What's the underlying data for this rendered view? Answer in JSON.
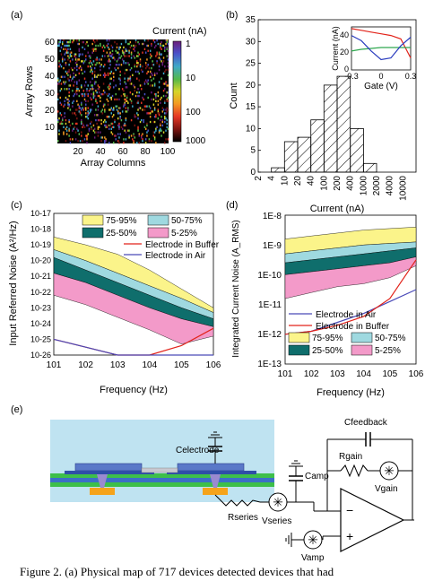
{
  "panel_a": {
    "label": "(a)",
    "xlabel": "Array Columns",
    "ylabel": "Array Rows",
    "x_ticks": [
      "20",
      "40",
      "60",
      "80",
      "100"
    ],
    "y_ticks": [
      "10",
      "20",
      "30",
      "40",
      "50",
      "60"
    ],
    "colorbar_title": "Current (nA)",
    "colorbar_ticks": [
      "1",
      "10",
      "100",
      "1000"
    ],
    "colorbar_colors": [
      "#6b1d7a",
      "#4a50c8",
      "#3fa8c8",
      "#56b849",
      "#d6d52a",
      "#f39b23",
      "#e53624",
      "#7a1410",
      "#000000"
    ]
  },
  "panel_b": {
    "label": "(b)",
    "ylabel": "Count",
    "xlabel": "Current (nA)",
    "inset_ylabel": "Current (nA)",
    "inset_xlabel": "Gate (V)",
    "inset_x_ticks": [
      "-0.3",
      "0",
      "0.3"
    ],
    "inset_y_ticks": [
      "0",
      "20",
      "40"
    ],
    "inset_series_colors": [
      "#e2231a",
      "#2fa84f",
      "#2b3dbf"
    ]
  },
  "panel_c": {
    "label": "(c)",
    "ylabel": "Input Referred Noise (A²/Hz)",
    "xlabel": "Frequency (Hz)",
    "legend": [
      "75-95%",
      "50-75%",
      "25-50%",
      "5-25%",
      "Electrode in Buffer",
      "Electrode in Air"
    ],
    "colors": {
      "p75_95": "#fbf48a",
      "p50_75": "#9fd9e0",
      "p25_50": "#0f6e6c",
      "p5_25": "#f39ac9",
      "buffer": "#e2231a",
      "air": "#4a4ab8"
    }
  },
  "panel_d": {
    "label": "(d)",
    "ylabel": "Integrated Current Noise (A_RMS)",
    "xlabel": "Frequency (Hz)",
    "y_ticks": [
      "1E-8",
      "1E-9",
      "1E-10",
      "1E-11",
      "1E-12",
      "1E-13"
    ],
    "legend": [
      "Electrode in Air",
      "Electrode in Buffer",
      "75-95%",
      "50-75%",
      "25-50%",
      "5-25%"
    ]
  },
  "panel_e": {
    "label": "(e)",
    "labels": [
      "Celectrode",
      "Camp",
      "Cfeedback",
      "Rgain",
      "Vgain",
      "Rseries",
      "Vseries",
      "Vamp"
    ],
    "op_minus": "−",
    "op_plus": "+"
  },
  "chart_data": [
    {
      "type": "heatmap",
      "xlabel": "Array Columns",
      "ylabel": "Array Rows",
      "xlim": [
        1,
        100
      ],
      "ylim": [
        1,
        60
      ],
      "colorbar": {
        "title": "Current (nA)",
        "ticks": [
          1,
          10,
          100,
          1000
        ],
        "scale": "log"
      }
    },
    {
      "type": "bar",
      "xlabel": "Current (nA)",
      "ylabel": "Count",
      "categories": [
        "2",
        "4",
        "10",
        "20",
        "40",
        "100",
        "200",
        "400",
        "1000",
        "2000",
        "4000",
        "10000"
      ],
      "values": [
        0,
        1,
        7,
        8,
        12,
        20,
        22,
        10,
        2,
        0,
        0,
        0
      ],
      "ylim": [
        0,
        35
      ],
      "y_ticks": [
        0,
        5,
        10,
        15,
        20,
        25,
        30,
        35
      ],
      "x_scale": "log"
    },
    {
      "type": "line",
      "title": "",
      "xlabel": "Gate (V)",
      "ylabel": "Current (nA)",
      "xlim": [
        -0.3,
        0.3
      ],
      "ylim": [
        0,
        50
      ],
      "x": [
        -0.3,
        -0.2,
        -0.1,
        0,
        0.1,
        0.2,
        0.3
      ],
      "series": [
        {
          "values": [
            48,
            46,
            44,
            42,
            40,
            36,
            14
          ]
        },
        {
          "values": [
            22,
            24,
            25,
            26,
            26,
            26,
            26
          ]
        },
        {
          "values": [
            40,
            34,
            22,
            12,
            14,
            28,
            38
          ]
        }
      ]
    },
    {
      "type": "area",
      "xlabel": "Frequency (Hz)",
      "ylabel": "Input Referred Noise (A²/Hz)",
      "x_scale": "log",
      "y_scale": "log",
      "xlim": [
        10,
        1000000
      ],
      "ylim": [
        1e-26,
        1e-17
      ],
      "x_ticks": [
        10,
        100,
        1000,
        10000,
        100000,
        1000000
      ],
      "y_ticks": [
        1e-26,
        1e-25,
        1e-24,
        1e-23,
        1e-22,
        1e-21,
        1e-20,
        1e-19,
        1e-18,
        1e-17
      ],
      "x": [
        10,
        100,
        1000,
        10000,
        100000,
        1000000
      ],
      "bands": [
        {
          "name": "75-95%",
          "lower_exp": [
            -19.3,
            -20.0,
            -20.8,
            -21.6,
            -22.4,
            -23.3
          ],
          "upper_exp": [
            -18.5,
            -19.0,
            -19.6,
            -20.6,
            -21.8,
            -23.0
          ]
        },
        {
          "name": "50-75%",
          "lower_exp": [
            -19.8,
            -20.6,
            -21.4,
            -22.2,
            -23.0,
            -23.7
          ],
          "upper_exp": [
            -19.3,
            -20.0,
            -20.8,
            -21.6,
            -22.4,
            -23.3
          ]
        },
        {
          "name": "25-50%",
          "lower_exp": [
            -20.8,
            -21.4,
            -22.2,
            -23.0,
            -23.7,
            -24.2
          ],
          "upper_exp": [
            -19.8,
            -20.6,
            -21.4,
            -22.2,
            -23.0,
            -23.7
          ]
        },
        {
          "name": "5-25%",
          "lower_exp": [
            -22.2,
            -22.8,
            -23.6,
            -24.4,
            -25.3,
            -24.8
          ],
          "upper_exp": [
            -20.8,
            -21.4,
            -22.2,
            -23.0,
            -23.7,
            -24.2
          ]
        }
      ],
      "series": [
        {
          "name": "Electrode in Buffer",
          "y_exp": [
            -25.0,
            -25.5,
            -26.0,
            -26.0,
            -25.4,
            -24.3
          ]
        },
        {
          "name": "Electrode in Air",
          "y_exp": [
            -25.0,
            -25.5,
            -26.0,
            -26.0,
            -26.0,
            -26.0
          ]
        }
      ]
    },
    {
      "type": "area",
      "xlabel": "Frequency (Hz)",
      "ylabel": "Integrated Current Noise (A_RMS)",
      "x_scale": "log",
      "y_scale": "log",
      "xlim": [
        10,
        1000000
      ],
      "ylim": [
        1e-13,
        1e-08
      ],
      "x_ticks": [
        10,
        100,
        1000,
        10000,
        100000,
        1000000
      ],
      "y_ticks": [
        1e-13,
        1e-12,
        1e-11,
        1e-10,
        1e-09,
        1e-08
      ],
      "x": [
        10,
        100,
        1000,
        10000,
        100000,
        1000000
      ],
      "bands": [
        {
          "name": "75-95%",
          "lower_exp": [
            -9.3,
            -9.2,
            -9.1,
            -9.0,
            -8.95,
            -8.9
          ],
          "upper_exp": [
            -8.8,
            -8.7,
            -8.6,
            -8.5,
            -8.45,
            -8.4
          ]
        },
        {
          "name": "50-75%",
          "lower_exp": [
            -9.6,
            -9.5,
            -9.4,
            -9.3,
            -9.2,
            -9.1
          ],
          "upper_exp": [
            -9.3,
            -9.2,
            -9.1,
            -9.0,
            -8.95,
            -8.9
          ]
        },
        {
          "name": "25-50%",
          "lower_exp": [
            -10.0,
            -9.9,
            -9.8,
            -9.7,
            -9.6,
            -9.4
          ],
          "upper_exp": [
            -9.6,
            -9.5,
            -9.4,
            -9.3,
            -9.2,
            -9.1
          ]
        },
        {
          "name": "5-25%",
          "lower_exp": [
            -10.8,
            -10.6,
            -10.4,
            -10.3,
            -10.1,
            -9.7
          ],
          "upper_exp": [
            -10.0,
            -9.9,
            -9.8,
            -9.7,
            -9.6,
            -9.4
          ]
        }
      ],
      "series": [
        {
          "name": "Electrode in Air",
          "y_exp": [
            -12.0,
            -11.9,
            -11.6,
            -11.3,
            -10.9,
            -10.5
          ]
        },
        {
          "name": "Electrode in Buffer",
          "y_exp": [
            -12.0,
            -11.9,
            -11.7,
            -11.4,
            -10.8,
            -9.5
          ]
        }
      ]
    }
  ],
  "caption": {
    "text": "Figure 2. (a) Physical map of 717 devices detected devices that had"
  }
}
